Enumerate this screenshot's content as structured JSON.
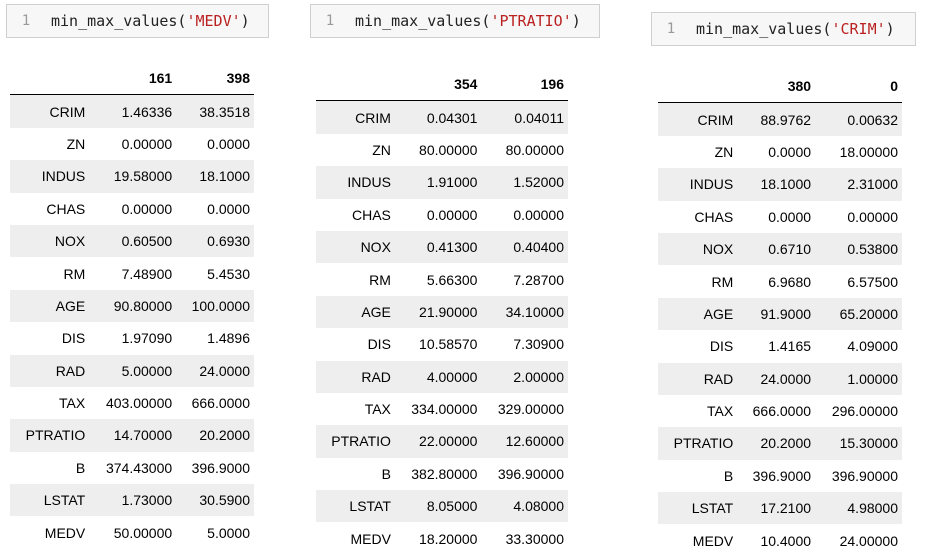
{
  "panels": [
    {
      "line_number": "1",
      "func": "min_max_values(",
      "arg": "'MEDV'",
      "close": ")",
      "headers": [
        "",
        "161",
        "398"
      ],
      "rows": [
        [
          "CRIM",
          "1.46336",
          "38.3518"
        ],
        [
          "ZN",
          "0.00000",
          "0.0000"
        ],
        [
          "INDUS",
          "19.58000",
          "18.1000"
        ],
        [
          "CHAS",
          "0.00000",
          "0.0000"
        ],
        [
          "NOX",
          "0.60500",
          "0.6930"
        ],
        [
          "RM",
          "7.48900",
          "5.4530"
        ],
        [
          "AGE",
          "90.80000",
          "100.0000"
        ],
        [
          "DIS",
          "1.97090",
          "1.4896"
        ],
        [
          "RAD",
          "5.00000",
          "24.0000"
        ],
        [
          "TAX",
          "403.00000",
          "666.0000"
        ],
        [
          "PTRATIO",
          "14.70000",
          "20.2000"
        ],
        [
          "B",
          "374.43000",
          "396.9000"
        ],
        [
          "LSTAT",
          "1.73000",
          "30.5900"
        ],
        [
          "MEDV",
          "50.00000",
          "5.0000"
        ]
      ]
    },
    {
      "line_number": "1",
      "func": "min_max_values(",
      "arg": "'PTRATIO'",
      "close": ")",
      "headers": [
        "",
        "354",
        "196"
      ],
      "rows": [
        [
          "CRIM",
          "0.04301",
          "0.04011"
        ],
        [
          "ZN",
          "80.00000",
          "80.00000"
        ],
        [
          "INDUS",
          "1.91000",
          "1.52000"
        ],
        [
          "CHAS",
          "0.00000",
          "0.00000"
        ],
        [
          "NOX",
          "0.41300",
          "0.40400"
        ],
        [
          "RM",
          "5.66300",
          "7.28700"
        ],
        [
          "AGE",
          "21.90000",
          "34.10000"
        ],
        [
          "DIS",
          "10.58570",
          "7.30900"
        ],
        [
          "RAD",
          "4.00000",
          "2.00000"
        ],
        [
          "TAX",
          "334.00000",
          "329.00000"
        ],
        [
          "PTRATIO",
          "22.00000",
          "12.60000"
        ],
        [
          "B",
          "382.80000",
          "396.90000"
        ],
        [
          "LSTAT",
          "8.05000",
          "4.08000"
        ],
        [
          "MEDV",
          "18.20000",
          "33.30000"
        ]
      ]
    },
    {
      "line_number": "1",
      "func": "min_max_values(",
      "arg": "'CRIM'",
      "close": ")",
      "headers": [
        "",
        "380",
        "0"
      ],
      "rows": [
        [
          "CRIM",
          "88.9762",
          "0.00632"
        ],
        [
          "ZN",
          "0.0000",
          "18.00000"
        ],
        [
          "INDUS",
          "18.1000",
          "2.31000"
        ],
        [
          "CHAS",
          "0.0000",
          "0.00000"
        ],
        [
          "NOX",
          "0.6710",
          "0.53800"
        ],
        [
          "RM",
          "6.9680",
          "6.57500"
        ],
        [
          "AGE",
          "91.9000",
          "65.20000"
        ],
        [
          "DIS",
          "1.4165",
          "4.09000"
        ],
        [
          "RAD",
          "24.0000",
          "1.00000"
        ],
        [
          "TAX",
          "666.0000",
          "296.00000"
        ],
        [
          "PTRATIO",
          "20.2000",
          "15.30000"
        ],
        [
          "B",
          "396.9000",
          "396.90000"
        ],
        [
          "LSTAT",
          "17.2100",
          "4.98000"
        ],
        [
          "MEDV",
          "10.4000",
          "24.00000"
        ]
      ]
    }
  ]
}
